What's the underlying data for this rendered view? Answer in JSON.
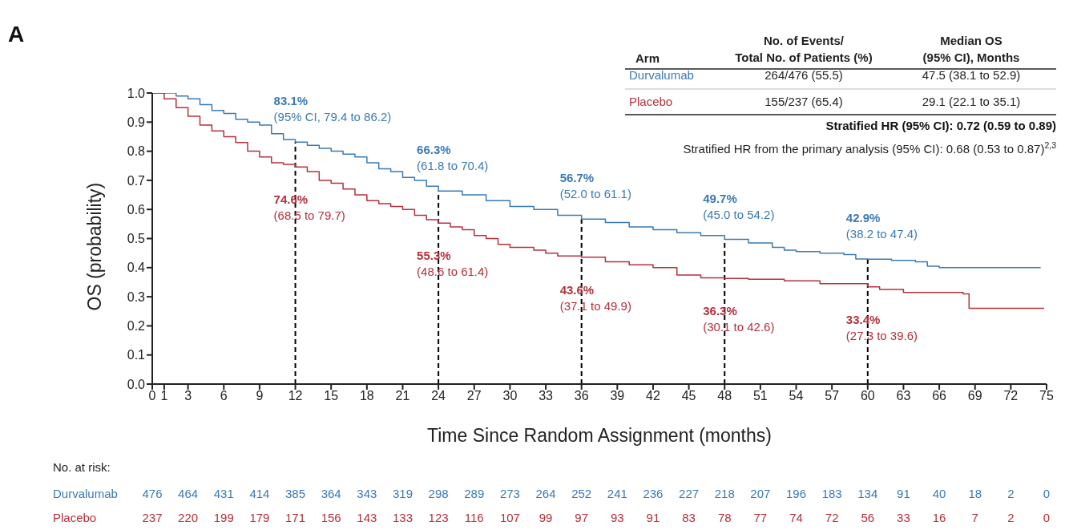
{
  "chart_data": {
    "type": "step",
    "xlabel": "Time Since Random Assignment (months)",
    "ylabel": "OS (probability)",
    "xlim": [
      0,
      75
    ],
    "xticks": [
      0,
      1,
      3,
      6,
      9,
      12,
      15,
      18,
      21,
      24,
      27,
      30,
      33,
      36,
      39,
      42,
      45,
      48,
      51,
      54,
      57,
      60,
      63,
      66,
      69,
      72,
      75
    ],
    "ylim": [
      0,
      1
    ],
    "yticks": [
      {
        "value": 0,
        "label": "0.0"
      },
      {
        "value": 0.1,
        "label": "0.1"
      },
      {
        "value": 0.2,
        "label": "0.2"
      },
      {
        "value": 0.3,
        "label": "0.3"
      },
      {
        "value": 0.4,
        "label": "0.4"
      },
      {
        "value": 0.5,
        "label": "0.5"
      },
      {
        "value": 0.6,
        "label": "0.6"
      },
      {
        "value": 0.7,
        "label": "0.7"
      },
      {
        "value": 0.8,
        "label": "0.8"
      },
      {
        "value": 0.9,
        "label": "0.9"
      },
      {
        "value": 1,
        "label": "1.0"
      }
    ],
    "legend": false,
    "grid": false,
    "series": [
      {
        "name": "Durvalumab",
        "color": "#3a7ab5",
        "x": [
          0,
          1,
          2,
          3,
          4,
          5,
          6,
          7,
          8,
          9,
          10,
          11,
          12,
          13,
          14,
          15,
          16,
          17,
          18,
          19,
          20,
          21,
          22,
          23,
          24,
          26,
          28,
          30,
          32,
          34,
          36,
          38,
          40,
          42,
          44,
          46,
          48,
          50,
          52,
          53,
          54,
          56,
          58,
          59,
          60,
          62,
          64,
          65,
          66,
          74.5
        ],
        "values": [
          1,
          1,
          0.99,
          0.98,
          0.96,
          0.94,
          0.93,
          0.91,
          0.9,
          0.89,
          0.86,
          0.84,
          0.831,
          0.82,
          0.81,
          0.8,
          0.79,
          0.78,
          0.76,
          0.74,
          0.73,
          0.71,
          0.7,
          0.68,
          0.663,
          0.65,
          0.63,
          0.61,
          0.6,
          0.58,
          0.567,
          0.555,
          0.54,
          0.53,
          0.52,
          0.51,
          0.497,
          0.485,
          0.47,
          0.46,
          0.455,
          0.45,
          0.445,
          0.43,
          0.429,
          0.425,
          0.42,
          0.405,
          0.4,
          0.4
        ]
      },
      {
        "name": "Placebo",
        "color": "#b5303a",
        "x": [
          0,
          1,
          2,
          3,
          4,
          5,
          6,
          7,
          8,
          9,
          10,
          11,
          12,
          13,
          14,
          15,
          16,
          17,
          18,
          19,
          20,
          21,
          22,
          23,
          24,
          25,
          26,
          27,
          28,
          29,
          30,
          32,
          33,
          34,
          36,
          38,
          40,
          42,
          44,
          46,
          48,
          50,
          53,
          56,
          60,
          61,
          63,
          68,
          68.5,
          74.8
        ],
        "values": [
          1,
          0.98,
          0.95,
          0.92,
          0.89,
          0.87,
          0.85,
          0.83,
          0.8,
          0.78,
          0.76,
          0.755,
          0.746,
          0.73,
          0.7,
          0.69,
          0.67,
          0.65,
          0.63,
          0.62,
          0.61,
          0.6,
          0.58,
          0.565,
          0.553,
          0.54,
          0.53,
          0.51,
          0.5,
          0.48,
          0.47,
          0.46,
          0.45,
          0.44,
          0.436,
          0.42,
          0.41,
          0.4,
          0.375,
          0.365,
          0.363,
          0.36,
          0.355,
          0.345,
          0.334,
          0.325,
          0.315,
          0.31,
          0.26,
          0.26
        ]
      }
    ],
    "ref_lines": [
      {
        "axis": "x",
        "value": 12,
        "color": "#000000",
        "line_style": "dashed"
      },
      {
        "axis": "x",
        "value": 24,
        "color": "#000000",
        "line_style": "dashed"
      },
      {
        "axis": "x",
        "value": 36,
        "color": "#000000",
        "line_style": "dashed"
      },
      {
        "axis": "x",
        "value": 48,
        "color": "#000000",
        "line_style": "dashed"
      },
      {
        "axis": "x",
        "value": 60,
        "color": "#000000",
        "line_style": "dashed"
      }
    ],
    "annotations": [
      {
        "text": "83.1%\n(95% CI, 79.4 to 86.2)",
        "x": 12,
        "y": 0.831
      },
      {
        "text": "74.6%\n(68.5 to 79.7)",
        "x": 12,
        "y": 0.746
      },
      {
        "text": "66.3%\n(61.8 to 70.4)",
        "x": 24,
        "y": 0.663
      },
      {
        "text": "55.3%\n(48.6 to 61.4)",
        "x": 24,
        "y": 0.553
      },
      {
        "text": "56.7%\n(52.0 to 61.1)",
        "x": 36,
        "y": 0.567
      },
      {
        "text": "43.6%\n(37.1 to 49.9)",
        "x": 36,
        "y": 0.436
      },
      {
        "text": "49.7%\n(45.0 to 54.2)",
        "x": 48,
        "y": 0.497
      },
      {
        "text": "36.3%\n(30.1 to 42.6)",
        "x": 48,
        "y": 0.363
      },
      {
        "text": "42.9%\n(38.2 to 47.4)",
        "x": 60,
        "y": 0.429
      },
      {
        "text": "33.4%\n(27.3 to 39.6)",
        "x": 60,
        "y": 0.334
      },
      "A",
      "Arm",
      "No. of Events/\nTotal No. of Patients (%)",
      "Median OS\n(95% CI), Months",
      "264/476 (55.5)",
      "47.5 (38.1 to 52.9)",
      "155/237 (65.4)",
      "29.1 (22.1 to 35.1)",
      "Stratified HR (95% CI): 0.72 (0.59 to 0.89)",
      "Stratified HR from the primary analysis (95% CI): 0.68 (0.53 to 0.87)$^{2,3}$",
      "No. at risk:",
      "476 464 431 414 385 364 343 319 298 289 273 264 252 241 236 227 218 207 196 183 134 91 40 18 2 0",
      "237 220 199 179 171 156 143 133 123 116 107 99 97 93 91 83 78 77 74 72 56 33 16 7 2 0"
    ]
  }
}
